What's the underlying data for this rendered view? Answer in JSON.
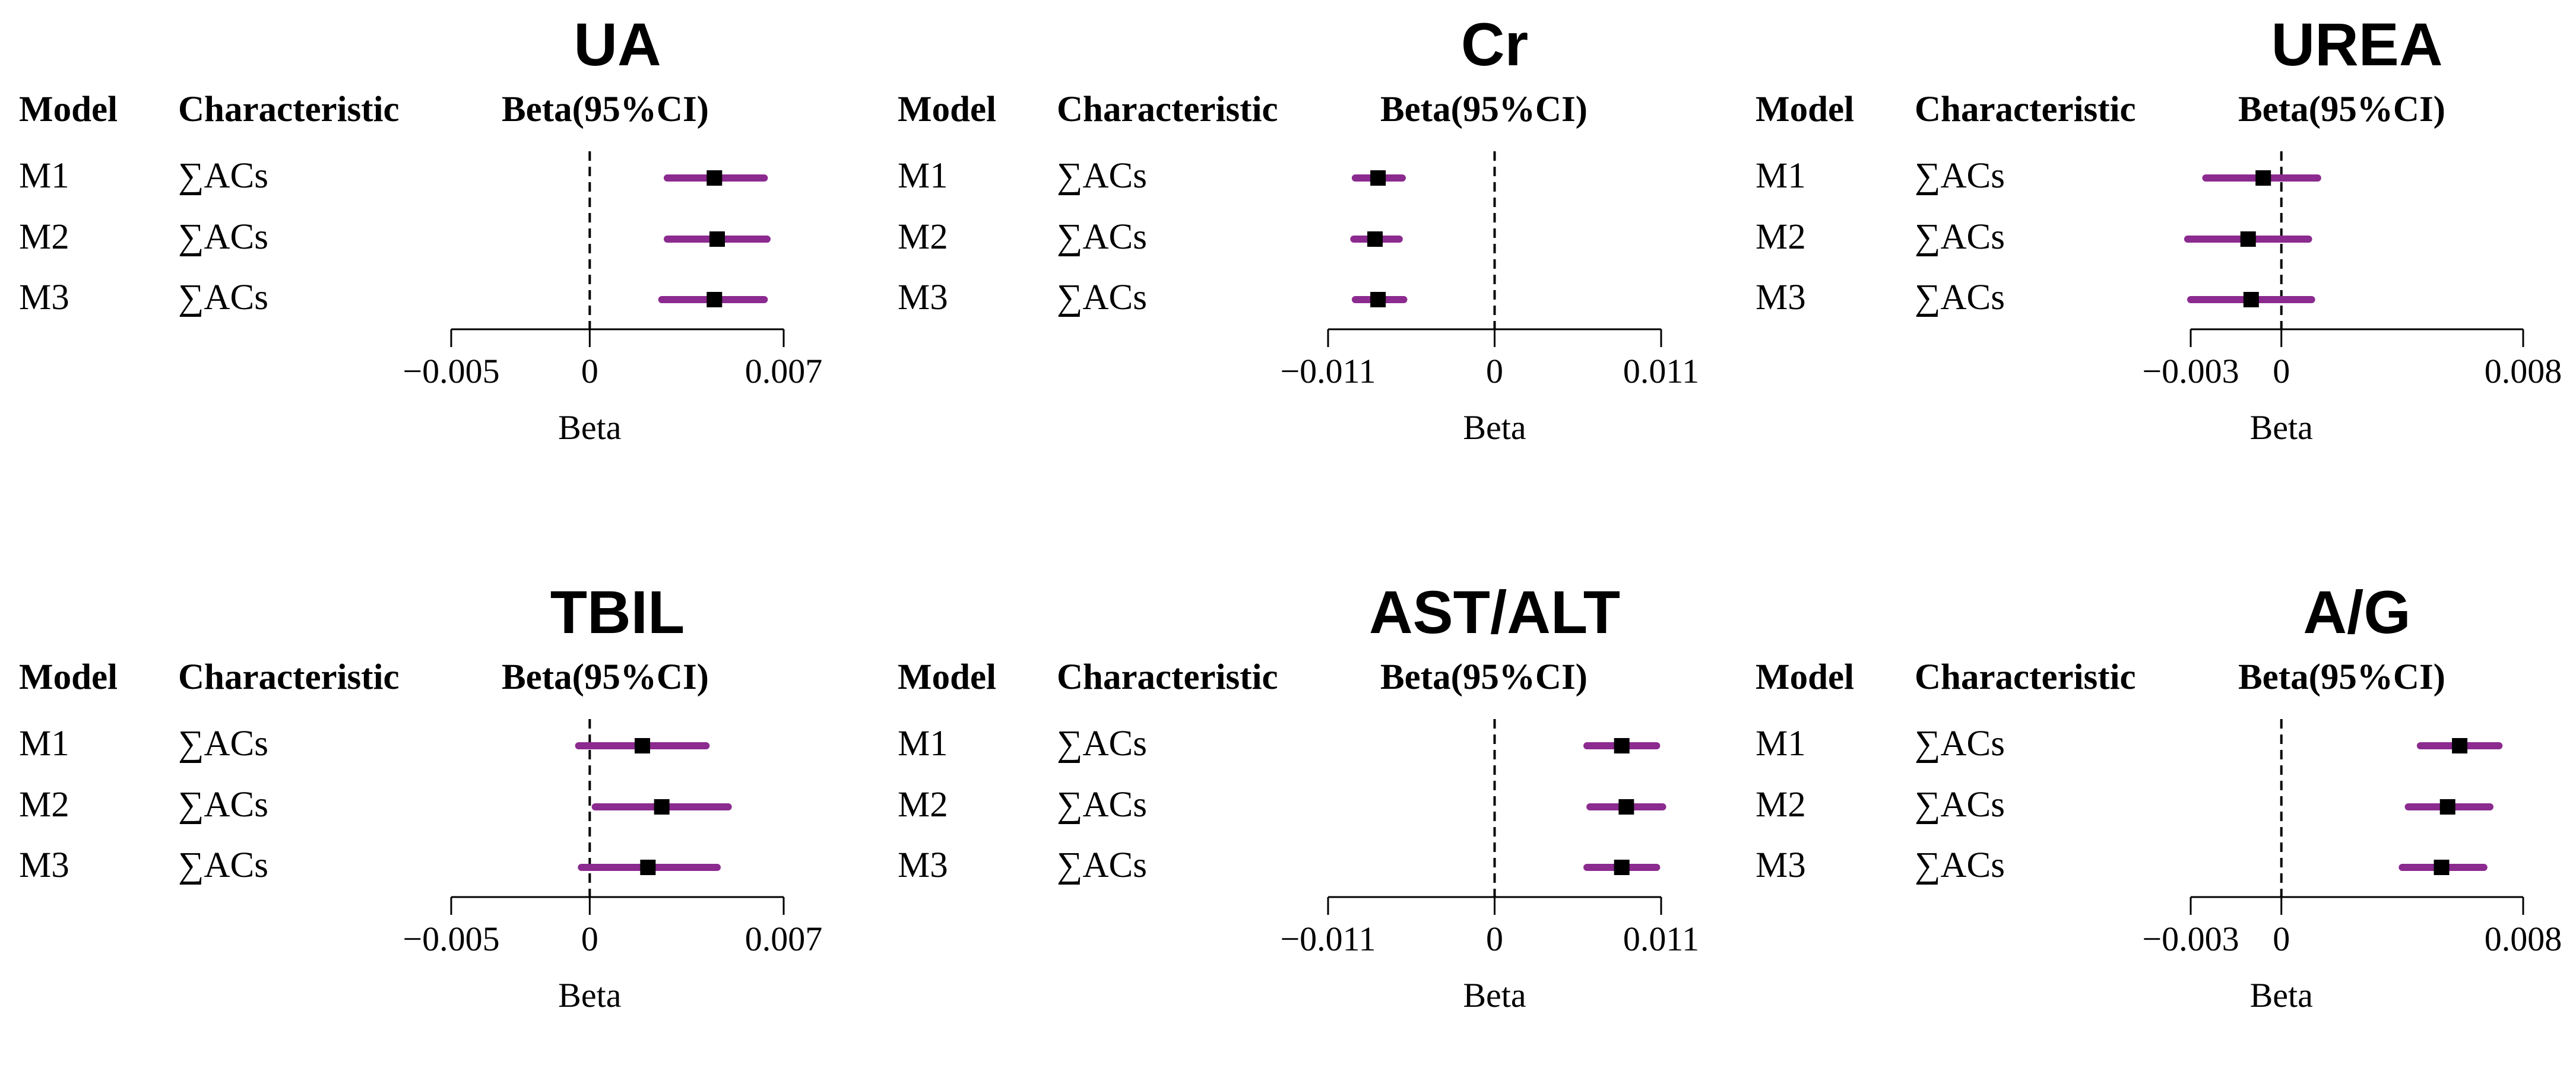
{
  "colors": {
    "ci_line": "#8B2A8F",
    "point": "#000000",
    "axis": "#000000",
    "ref_line": "#000000"
  },
  "headers": {
    "model": "Model",
    "characteristic": "Characteristic",
    "beta": "Beta(95%CI)"
  },
  "chart_data": [
    {
      "type": "forest",
      "title": "UA",
      "xlabel": "Beta",
      "xlim": [
        -0.005,
        0.007
      ],
      "ticks": [
        -0.005,
        0,
        0.007
      ],
      "tick_labels": [
        "−0.005",
        "0",
        "0.007"
      ],
      "rows": [
        {
          "model": "M1",
          "characteristic": "∑ACs",
          "beta": 0.0045,
          "lower": 0.0028,
          "upper": 0.0063
        },
        {
          "model": "M2",
          "characteristic": "∑ACs",
          "beta": 0.0046,
          "lower": 0.0028,
          "upper": 0.0064
        },
        {
          "model": "M3",
          "characteristic": "∑ACs",
          "beta": 0.0045,
          "lower": 0.0026,
          "upper": 0.0063
        }
      ]
    },
    {
      "type": "forest",
      "title": "Cr",
      "xlabel": "Beta",
      "xlim": [
        -0.011,
        0.011
      ],
      "ticks": [
        -0.011,
        0,
        0.011
      ],
      "tick_labels": [
        "−0.011",
        "0",
        "0.011"
      ],
      "rows": [
        {
          "model": "M1",
          "characteristic": "∑ACs",
          "beta": -0.0077,
          "lower": -0.0092,
          "upper": -0.0061
        },
        {
          "model": "M2",
          "characteristic": "∑ACs",
          "beta": -0.0079,
          "lower": -0.0093,
          "upper": -0.0063
        },
        {
          "model": "M3",
          "characteristic": "∑ACs",
          "beta": -0.0077,
          "lower": -0.0092,
          "upper": -0.006
        }
      ]
    },
    {
      "type": "forest",
      "title": "UREA",
      "xlabel": "Beta",
      "xlim": [
        -0.003,
        0.008
      ],
      "ticks": [
        -0.003,
        0,
        0.008
      ],
      "tick_labels": [
        "−0.003",
        "0",
        "0.008"
      ],
      "rows": [
        {
          "model": "M1",
          "characteristic": "∑ACs",
          "beta": -0.0006,
          "lower": -0.0025,
          "upper": 0.0012
        },
        {
          "model": "M2",
          "characteristic": "∑ACs",
          "beta": -0.0011,
          "lower": -0.0031,
          "upper": 0.0009
        },
        {
          "model": "M3",
          "characteristic": "∑ACs",
          "beta": -0.001,
          "lower": -0.003,
          "upper": 0.001
        }
      ]
    },
    {
      "type": "forest",
      "title": "TBIL",
      "xlabel": "Beta",
      "xlim": [
        -0.005,
        0.007
      ],
      "ticks": [
        -0.005,
        0,
        0.007
      ],
      "tick_labels": [
        "−0.005",
        "0",
        "0.007"
      ],
      "rows": [
        {
          "model": "M1",
          "characteristic": "∑ACs",
          "beta": 0.0019,
          "lower": -0.0004,
          "upper": 0.0042
        },
        {
          "model": "M2",
          "characteristic": "∑ACs",
          "beta": 0.0026,
          "lower": 0.0002,
          "upper": 0.005
        },
        {
          "model": "M3",
          "characteristic": "∑ACs",
          "beta": 0.0021,
          "lower": -0.0003,
          "upper": 0.0046
        }
      ]
    },
    {
      "type": "forest",
      "title": "AST/ALT",
      "xlabel": "Beta",
      "xlim": [
        -0.011,
        0.011
      ],
      "ticks": [
        -0.011,
        0,
        0.011
      ],
      "tick_labels": [
        "−0.011",
        "0",
        "0.011"
      ],
      "rows": [
        {
          "model": "M1",
          "characteristic": "∑ACs",
          "beta": 0.0084,
          "lower": 0.0061,
          "upper": 0.0107
        },
        {
          "model": "M2",
          "characteristic": "∑ACs",
          "beta": 0.0087,
          "lower": 0.0063,
          "upper": 0.0111
        },
        {
          "model": "M3",
          "characteristic": "∑ACs",
          "beta": 0.0084,
          "lower": 0.0061,
          "upper": 0.0107
        }
      ]
    },
    {
      "type": "forest",
      "title": "A/G",
      "xlabel": "Beta",
      "xlim": [
        -0.003,
        0.008
      ],
      "ticks": [
        -0.003,
        0,
        0.008
      ],
      "tick_labels": [
        "−0.003",
        "0",
        "0.008"
      ],
      "rows": [
        {
          "model": "M1",
          "characteristic": "∑ACs",
          "beta": 0.0059,
          "lower": 0.0046,
          "upper": 0.0072
        },
        {
          "model": "M2",
          "characteristic": "∑ACs",
          "beta": 0.0055,
          "lower": 0.0042,
          "upper": 0.0069
        },
        {
          "model": "M3",
          "characteristic": "∑ACs",
          "beta": 0.0053,
          "lower": 0.004,
          "upper": 0.0067
        }
      ]
    }
  ]
}
